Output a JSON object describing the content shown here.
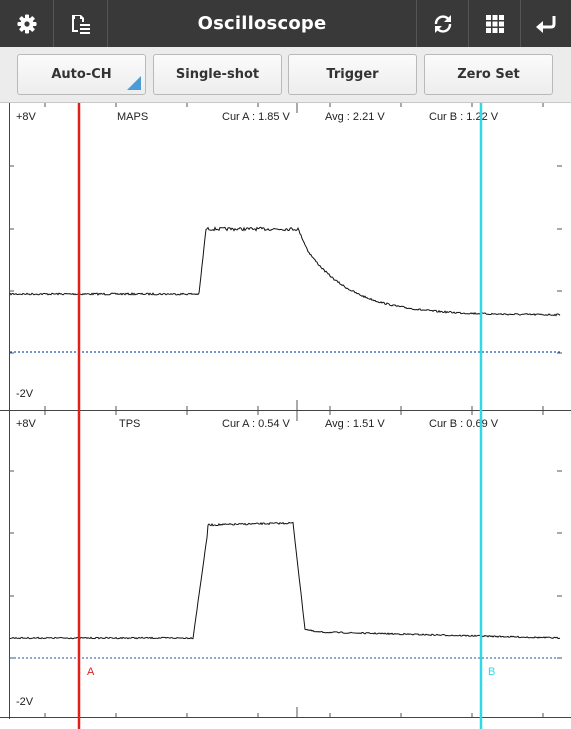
{
  "title": "Oscilloscope",
  "header": {
    "left_icons": [
      "gear-icon",
      "save-list-icon"
    ],
    "right_icons": [
      "refresh-icon",
      "grid-icon",
      "back-icon"
    ]
  },
  "toolbar": {
    "auto_ch": "Auto-CH",
    "single_shot": "Single-shot",
    "trigger": "Trigger",
    "zero_set": "Zero Set"
  },
  "channels": [
    {
      "name": "MAPS",
      "top_label": "+8V",
      "bottom_label": "-2V",
      "cur_a": "Cur A : 1.85 V",
      "avg": "Avg : 2.21 V",
      "cur_b": "Cur B : 1.22 V"
    },
    {
      "name": "TPS",
      "top_label": "+8V",
      "bottom_label": "-2V",
      "cur_a": "Cur A : 0.54 V",
      "avg": "Avg : 1.51 V",
      "cur_b": "Cur B : 0.69 V"
    }
  ],
  "cursors": {
    "a_label": "A",
    "b_label": "B",
    "a_color": "#e0201c",
    "b_color": "#30d8e8"
  },
  "colors": {
    "titlebar": "#393939",
    "trace": "#111111",
    "zero_line": "#2255aa",
    "accent": "#4a9bd6"
  }
}
